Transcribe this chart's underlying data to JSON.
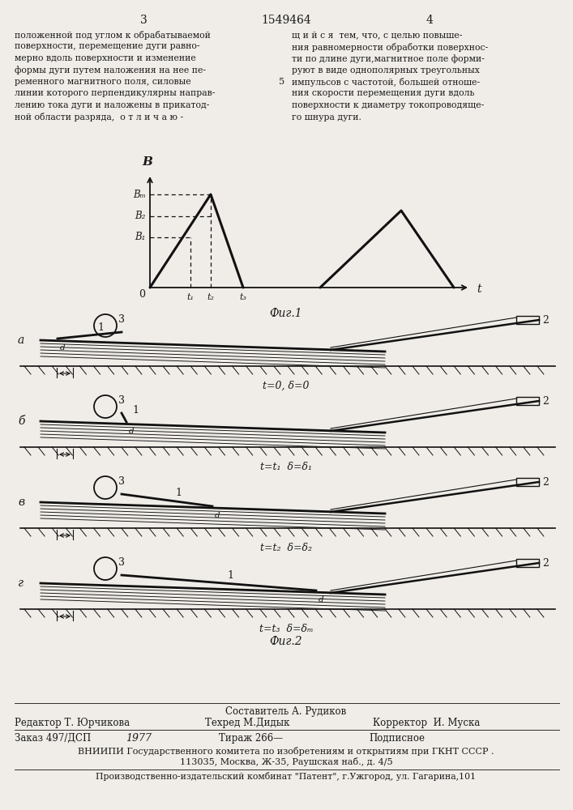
{
  "title_number": "1549464",
  "page_left": "3",
  "page_right": "4",
  "text_left": "положенной под углом к обрабатываемой\nповерхности, перемещение дуги равно-\nмерно вдоль поверхности и изменение\nформы дуги путем наложения на нее пе-\nременного магнитного поля, силовые\nлинии которого перпендикулярны направ-\nлению тока дуги и наложены в прикатод-\nной области разряда,  о т л и ч а ю -",
  "text_right": "щ и й с я  тем, что, с целью повыше-\nния равномерности обработки поверхнос-\nти по длине дуги,магнитное поле форми-\nруют в виде однополярных треугольных\nимпульсов с частотой, большей отноше-\nния скорости перемещения дуги вдоль\nповерхности к диаметру токопроводяще-\nго шнура дуги.",
  "fig1_label": "Фиг.1",
  "fig2_label": "Фиг.2",
  "graph_xlabel": "t",
  "graph_ylabel": "B",
  "t1_label": "t₁",
  "t2_label": "t₂",
  "t3_label": "t₃",
  "B1_label": "B₁",
  "B2_label": "B₂",
  "Bm_label": "Bₘ",
  "diagrams": [
    {
      "label_left": "a",
      "label_num3": "3",
      "label_num1": "1",
      "label_num2": "2",
      "time_label": "t=0, δ=0"
    },
    {
      "label_left": "б",
      "label_num3": "3",
      "label_num1": "1",
      "label_num2": "2",
      "time_label": "t=t₁  δ=δ₁"
    },
    {
      "label_left": "в",
      "label_num3": "3",
      "label_num1": "1",
      "label_num2": "2",
      "time_label": "t=t₂  δ=δ₂"
    },
    {
      "label_left": "г",
      "label_num3": "3",
      "label_num1": "1",
      "label_num2": "2",
      "time_label": "t=t₃  δ=δₘ"
    }
  ],
  "footer_line1": "Составитель А. Рудиков",
  "footer_editor": "Редактор Т. Юрчикова",
  "footer_tech": "Техред М.Дидык",
  "footer_corrector": "Корректор  И. Муска",
  "footer_order": "Заказ 497/ДСП",
  "footer_year": "1977",
  "footer_tirazh": "Тираж 266—",
  "footer_podpis": "Подписное",
  "footer_vniip": "ВНИИПИ Государственного комитета по изобретениям и открытиям при ГКНТ СССР .",
  "footer_addr": "113035, Москва, Ж-35, Раушская наб., д. 4/5",
  "footer_factory": "Производственно-издательский комбинат \"Патент\", г.Ужгород, ул. Гагарина,101",
  "bg_color": "#f0ede8",
  "text_color": "#1a1a1a",
  "line_color": "#111111"
}
